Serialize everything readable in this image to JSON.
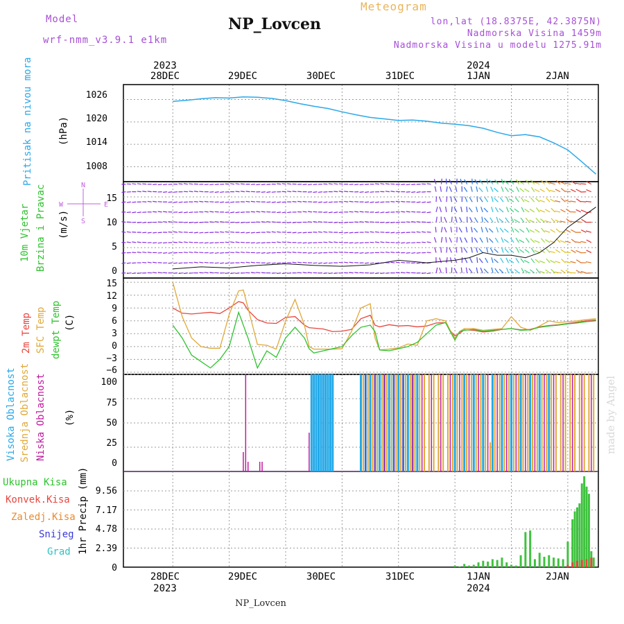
{
  "header": {
    "model_label": "Model",
    "model_name": "wrf-nmm_v3.9.1  e1km",
    "station": "NP_Lovcen",
    "meteogram": "Meteogram",
    "lonlat": "lon,lat (18.8375E, 42.3875N)",
    "elev": "Nadmorska Visina 1459m",
    "elev_model": "Nadmorska Visina u modelu 1275.91m",
    "bottom_station": "NP_Lovcen",
    "watermark": "made by Angel"
  },
  "time_axis": {
    "years_top": [
      "2023",
      "2024"
    ],
    "days": [
      "28DEC",
      "29DEC",
      "30DEC",
      "31DEC",
      "1JAN",
      "2JAN"
    ],
    "years_bottom": [
      "2023",
      "2024"
    ]
  },
  "colors": {
    "pressure": "#2aa8e8",
    "t2m": "#e8453c",
    "sfc": "#e0a838",
    "dew": "#2ec22e",
    "high": "#23a9e8",
    "mid": "#e0a838",
    "low": "#c01a9e",
    "precip": "#3fc23f",
    "conv": "#e8453c",
    "wind_purple": "#8a2be2"
  },
  "panels": {
    "pressure": {
      "ylabel_1": "Pritisak na nivou mora",
      "ylabel_2": "(hPa)",
      "ticks": [
        "1026",
        "1020",
        "1014",
        "1008"
      ]
    },
    "wind": {
      "ylabel_1": "10m Vjetar",
      "ylabel_2": "Brzina i Pravac",
      "ylabel_3": "(m/s)",
      "ticks": [
        "15",
        "10",
        "5",
        "0"
      ],
      "compass_n": "N",
      "compass_s": "S",
      "compass_e": "E",
      "compass_w": "W"
    },
    "temp": {
      "ylabel_1": "2m Temp",
      "ylabel_2": "SFC Temp",
      "ylabel_3": "dewpt Temp",
      "ylabel_4": "(C)",
      "ticks": [
        "15",
        "12",
        "9",
        "6",
        "3",
        "0",
        "−3",
        "−6"
      ]
    },
    "cloud": {
      "ylabel_1": "Visoka Oblacnost",
      "ylabel_2": "Srednja Oblacnost",
      "ylabel_3": "Niska Oblacnost",
      "ylabel_4": "(%)",
      "ticks": [
        "100",
        "75",
        "50",
        "25",
        "0"
      ]
    },
    "precip": {
      "legend": [
        "Ukupna Kisa",
        "Konvek.Kisa",
        "Zaledj.Kisa",
        "Snijeg",
        "Grad"
      ],
      "legend_colors": [
        "#2ec22e",
        "#e8453c",
        "#e88a2e",
        "#3a3ad6",
        "#2ec2c2"
      ],
      "ylabel": "1hr Precip (mm)",
      "ticks": [
        "9.56",
        "7.17",
        "4.78",
        "2.39",
        "0"
      ]
    }
  },
  "chart_data": [
    {
      "type": "line",
      "title": "Pritisak na nivou mora",
      "ylabel": "(hPa)",
      "ylim": [
        1004,
        1030
      ],
      "x_hours": [
        0,
        6,
        12,
        18,
        24,
        30,
        36,
        42,
        48,
        54,
        60,
        66,
        72,
        78,
        84,
        90,
        96,
        102,
        108,
        114,
        120,
        126,
        132,
        138,
        144,
        150,
        156,
        162,
        168,
        174,
        180
      ],
      "series": [
        {
          "values": [
            1025.5,
            1025.8,
            1026.2,
            1026.5,
            1026.4,
            1026.7,
            1026.6,
            1026.3,
            1025.7,
            1024.9,
            1024.2,
            1023.6,
            1022.7,
            1021.9,
            1021.2,
            1020.8,
            1020.4,
            1020.5,
            1020.2,
            1019.7,
            1019.4,
            1019.0,
            1018.3,
            1017.2,
            1016.3,
            1016.6,
            1016.0,
            1014.4,
            1012.5,
            1009.3,
            1006.0
          ]
        }
      ]
    },
    {
      "type": "line",
      "title": "10m Vjetar Brzina i Pravac",
      "ylabel": "(m/s)",
      "ylim": [
        -1,
        18
      ],
      "x_hours": [
        0,
        12,
        24,
        36,
        48,
        60,
        72,
        84,
        96,
        108,
        120,
        126,
        132,
        138,
        144,
        150,
        156,
        162,
        168,
        174,
        180
      ],
      "series": [
        {
          "values": [
            0.8,
            1.2,
            1.0,
            1.5,
            1.8,
            1.5,
            1.3,
            1.6,
            2.5,
            2.0,
            2.5,
            3.0,
            4.0,
            3.5,
            3.5,
            3.0,
            4.0,
            6.0,
            9.0,
            11.0,
            13.0
          ]
        }
      ]
    },
    {
      "type": "line",
      "title": "2m Temp / SFC Temp / dewpt Temp",
      "ylabel": "(C)",
      "ylim": [
        -6.5,
        16
      ],
      "x_hours": [
        0,
        4,
        8,
        12,
        16,
        20,
        24,
        28,
        30,
        32,
        36,
        40,
        44,
        48,
        52,
        56,
        58,
        60,
        64,
        68,
        72,
        76,
        80,
        84,
        86,
        88,
        92,
        96,
        100,
        104,
        108,
        112,
        116,
        118,
        120,
        122,
        124,
        128,
        132,
        136,
        140,
        144,
        148,
        152,
        156,
        160,
        164,
        168,
        172,
        176,
        180
      ],
      "series": [
        {
          "name": "2m Temp",
          "values": [
            9.0,
            7.8,
            7.6,
            7.8,
            8.0,
            7.7,
            9.0,
            10.5,
            10.2,
            8.5,
            6.3,
            5.5,
            5.4,
            6.8,
            7.0,
            5.0,
            4.4,
            4.3,
            4.1,
            3.5,
            3.6,
            4.0,
            6.5,
            7.3,
            5.0,
            4.6,
            5.1,
            4.8,
            4.9,
            4.6,
            4.8,
            5.5,
            5.6,
            3.7,
            2.5,
            3.1,
            3.9,
            3.8,
            3.4,
            3.6,
            4.0,
            4.2,
            3.9,
            4.0,
            4.6,
            4.9,
            5.1,
            5.4,
            5.7,
            6.0,
            6.2
          ]
        },
        {
          "name": "SFC Temp",
          "values": [
            15.0,
            7.0,
            2.0,
            0.0,
            -0.4,
            -0.4,
            7.5,
            13.0,
            13.2,
            9.0,
            0.5,
            0.3,
            -0.6,
            6.0,
            11.0,
            5.0,
            0.0,
            -0.6,
            -0.6,
            -0.6,
            -0.5,
            3.5,
            9.0,
            10.0,
            2.0,
            -0.8,
            -0.6,
            -0.3,
            0.6,
            0.3,
            6.0,
            6.5,
            6.0,
            3.8,
            1.9,
            3.5,
            4.2,
            4.2,
            3.8,
            4.0,
            4.2,
            7.0,
            4.5,
            3.8,
            4.8,
            6.0,
            5.6,
            5.8,
            6.0,
            6.3,
            6.5
          ]
        },
        {
          "name": "dewpt Temp",
          "values": [
            5.0,
            2.0,
            -2.0,
            -3.5,
            -5.0,
            -3.0,
            0.0,
            8.0,
            5.0,
            2.0,
            -5.0,
            -1.0,
            -2.5,
            2.0,
            4.5,
            2.0,
            -0.5,
            -1.5,
            -1.0,
            -0.5,
            0.0,
            2.5,
            4.5,
            5.0,
            3.5,
            -0.8,
            -1.0,
            -0.5,
            0.0,
            1.0,
            3.0,
            5.0,
            5.6,
            3.5,
            1.5,
            3.5,
            3.8,
            4.0,
            3.6,
            3.8,
            4.0,
            4.2,
            3.8,
            3.9,
            4.5,
            4.8,
            5.0,
            5.3,
            5.5,
            5.8,
            6.0
          ]
        }
      ]
    },
    {
      "type": "bar",
      "title": "Visoka / Srednja / Niska Oblacnost",
      "ylabel": "(%)",
      "ylim": [
        0,
        100
      ],
      "series": [
        {
          "name": "Visoka Oblacnost",
          "hours": [
            59,
            60,
            61,
            62,
            63,
            64,
            65,
            66,
            67,
            68,
            80,
            82,
            84,
            86,
            88,
            90,
            92,
            94,
            96,
            98,
            100,
            102,
            104,
            120,
            124,
            128,
            132,
            136,
            140,
            144,
            148,
            152,
            156,
            160
          ],
          "values": [
            100,
            100,
            100,
            100,
            100,
            100,
            100,
            100,
            100,
            100,
            100,
            100,
            100,
            100,
            100,
            100,
            100,
            100,
            100,
            100,
            100,
            100,
            100,
            100,
            100,
            100,
            100,
            100,
            100,
            100,
            100,
            100,
            100,
            100
          ]
        },
        {
          "name": "Srednja Oblacnost",
          "hours": [
            81,
            83,
            85,
            87,
            89,
            91,
            93,
            95,
            97,
            99,
            101,
            103,
            105,
            107,
            109,
            111,
            113,
            115,
            117,
            119,
            121,
            123,
            125,
            127,
            129,
            131,
            133,
            135,
            137,
            139,
            141,
            143,
            145,
            147,
            149,
            151,
            153,
            155,
            157,
            159,
            161,
            163,
            165,
            167,
            169,
            171,
            173,
            175,
            177,
            179
          ],
          "values": [
            100,
            100,
            100,
            100,
            100,
            100,
            100,
            100,
            100,
            100,
            100,
            100,
            100,
            100,
            100,
            100,
            100,
            100,
            100,
            100,
            100,
            100,
            100,
            100,
            100,
            100,
            100,
            30,
            100,
            100,
            100,
            100,
            100,
            100,
            100,
            100,
            100,
            100,
            100,
            100,
            100,
            100,
            100,
            100,
            100,
            100,
            100,
            100,
            100,
            100
          ]
        },
        {
          "name": "Niska Oblacnost",
          "hours": [
            30,
            31,
            32,
            37,
            38,
            58,
            82,
            86,
            90,
            94,
            98,
            102,
            106,
            110,
            114,
            118,
            122,
            126,
            130,
            134,
            138,
            142,
            146,
            150,
            154,
            158,
            162,
            166,
            170,
            174,
            178
          ],
          "values": [
            20,
            100,
            10,
            10,
            10,
            40,
            100,
            100,
            100,
            100,
            100,
            100,
            100,
            100,
            100,
            100,
            100,
            100,
            100,
            100,
            100,
            100,
            100,
            100,
            100,
            100,
            100,
            100,
            100,
            100,
            100
          ]
        }
      ]
    },
    {
      "type": "bar",
      "title": "1hr Precip",
      "ylabel": "1hr Precip (mm)",
      "ylim": [
        0,
        12
      ],
      "series": [
        {
          "name": "Ukupna Kisa",
          "hours": [
            120,
            122,
            124,
            126,
            128,
            130,
            132,
            134,
            136,
            138,
            140,
            142,
            144,
            146,
            148,
            150,
            152,
            154,
            156,
            158,
            160,
            162,
            164,
            166,
            168,
            170,
            171,
            172,
            173,
            174,
            175,
            176,
            177,
            178,
            179
          ],
          "values": [
            0.2,
            0.1,
            0.4,
            0.2,
            0.3,
            0.6,
            0.8,
            0.7,
            1.0,
            0.9,
            1.2,
            0.6,
            0.3,
            0.2,
            1.5,
            4.4,
            4.6,
            1.0,
            1.8,
            1.3,
            1.5,
            1.2,
            1.1,
            1.0,
            3.2,
            6.0,
            7.0,
            7.5,
            8.0,
            10.5,
            11.4,
            10.1,
            9.2,
            2.0,
            1.2
          ]
        },
        {
          "name": "Konvek.Kisa",
          "hours": [
            168,
            170,
            172,
            174,
            176,
            178
          ],
          "values": [
            0.3,
            0.6,
            0.8,
            0.9,
            1.0,
            1.2
          ]
        }
      ]
    }
  ]
}
